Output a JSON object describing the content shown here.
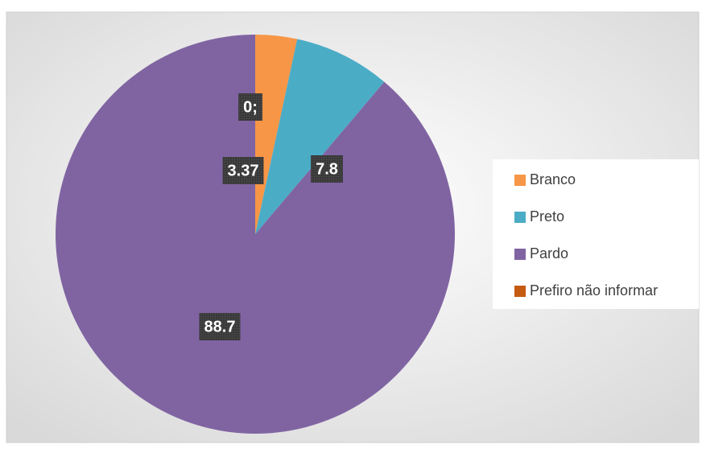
{
  "chart_data": {
    "type": "pie",
    "categories": [
      "Branco",
      "Preto",
      "Pardo",
      "Prefiro não informar"
    ],
    "values": [
      3.37,
      7.8,
      88.7,
      0
    ],
    "value_labels": [
      "3.37",
      "7.8",
      "88.7",
      "0;"
    ],
    "colors": [
      "#f79646",
      "#4bacc6",
      "#8064a2",
      "#c55a11"
    ],
    "legend": "right"
  }
}
